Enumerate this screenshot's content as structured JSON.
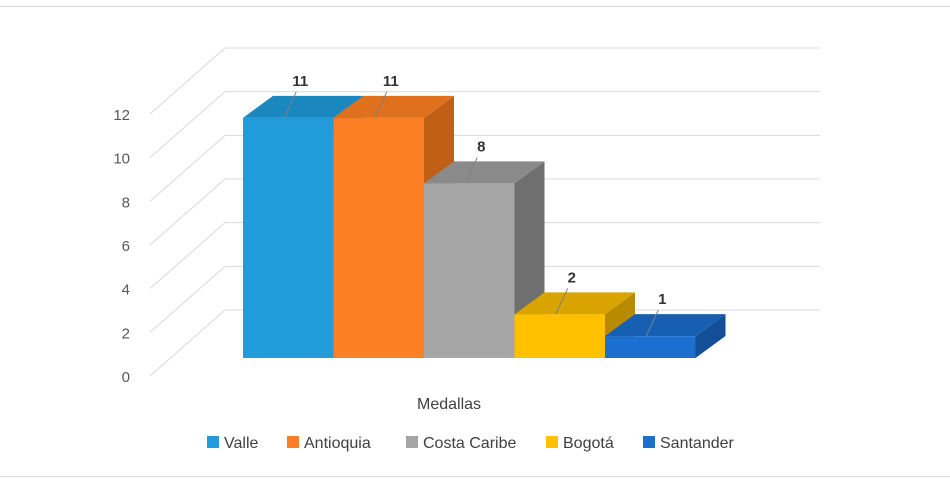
{
  "chart_data": {
    "type": "bar",
    "categories": [
      "Medallas"
    ],
    "series": [
      {
        "name": "Valle",
        "values": [
          11
        ],
        "color": "#219bd9",
        "side_color": "#1a7cad",
        "top_color": "#1a88bf"
      },
      {
        "name": "Antioquia",
        "values": [
          11
        ],
        "color": "#fd7f23",
        "side_color": "#c25f17",
        "top_color": "#e0701c"
      },
      {
        "name": "Costa Caribe",
        "values": [
          8
        ],
        "color": "#a6a6a6",
        "side_color": "#6f6f6f",
        "top_color": "#8a8a8a"
      },
      {
        "name": "Bogotá",
        "values": [
          2
        ],
        "color": "#ffc000",
        "side_color": "#b88a00",
        "top_color": "#d9a300"
      },
      {
        "name": "Santander",
        "values": [
          1
        ],
        "color": "#1a6fd1",
        "side_color": "#134f99",
        "top_color": "#175fb3"
      }
    ],
    "ylim": [
      0,
      12
    ],
    "yticks": [
      0,
      2,
      4,
      6,
      8,
      10,
      12
    ],
    "grid": true,
    "legend_position": "bottom",
    "view": "3d-column"
  }
}
